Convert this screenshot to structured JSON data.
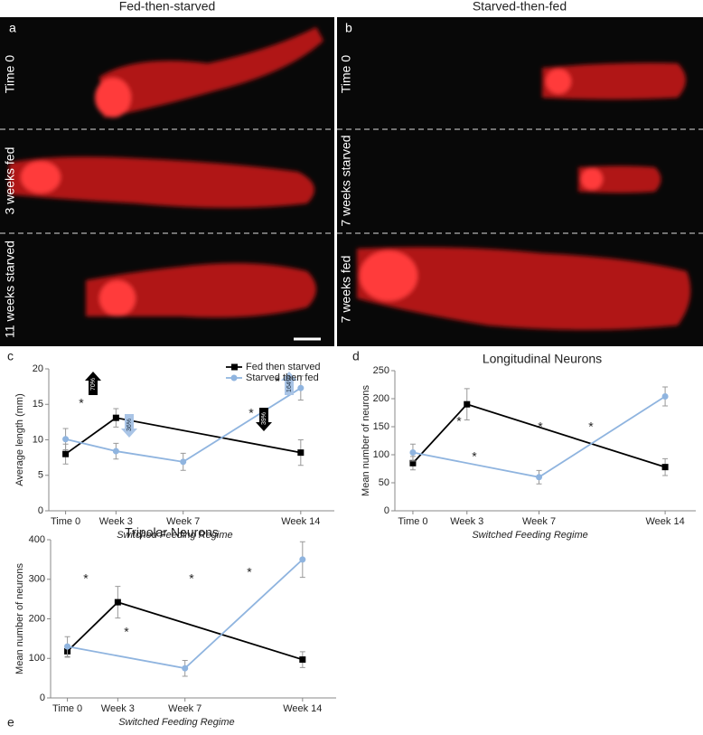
{
  "images": {
    "headers": [
      "Fed-then-starved",
      "Starved-then-fed"
    ],
    "panel_a": {
      "letter": "a",
      "rows": [
        "Time 0",
        "3 weeks fed",
        "11 weeks starved"
      ]
    },
    "panel_b": {
      "letter": "b",
      "rows": [
        "Time 0",
        "7 weeks starved",
        "7 weeks fed"
      ]
    }
  },
  "chart_data": [
    {
      "type": "line",
      "panel": "c",
      "ylabel": "Average length (mm)",
      "xlabel": "Switched Feeding Regime",
      "xlim": [
        -1,
        16
      ],
      "ylim": [
        0,
        20
      ],
      "yticks": [
        0,
        5,
        10,
        15,
        20
      ],
      "xticks": [
        {
          "value": 0,
          "label": "Time 0"
        },
        {
          "value": 3,
          "label": "Week 3"
        },
        {
          "value": 7,
          "label": "Week 7"
        },
        {
          "value": 14,
          "label": "Week 14"
        }
      ],
      "legend": "upper right",
      "series": [
        {
          "name": "Fed then starved",
          "color": "#000000",
          "marker": "square",
          "x": [
            0,
            3,
            14
          ],
          "values": [
            8,
            13.1,
            8.2
          ],
          "errors": [
            1.4,
            1.3,
            1.8
          ]
        },
        {
          "name": "Starved then fed",
          "color": "#8fb4df",
          "marker": "circle",
          "x": [
            0,
            3,
            7,
            14
          ],
          "values": [
            10.1,
            8.4,
            6.9,
            17.3
          ],
          "errors": [
            1.5,
            1.1,
            1.2,
            1.7
          ]
        }
      ],
      "annotations": [
        "*",
        "*",
        "*"
      ],
      "arrow_labels": [
        "70%",
        "36%",
        "39%",
        "164%"
      ]
    },
    {
      "type": "line",
      "panel": "d",
      "title": "Longitudinal Neurons",
      "ylabel": "Mean number of neurons",
      "xlabel": "Switched Feeding Regime",
      "xlim": [
        -1,
        15.7
      ],
      "ylim": [
        0,
        250
      ],
      "yticks": [
        0,
        50,
        100,
        150,
        200,
        250
      ],
      "xticks": [
        {
          "value": 0,
          "label": "Time 0"
        },
        {
          "value": 3,
          "label": "Week 3"
        },
        {
          "value": 7,
          "label": "Week 7"
        },
        {
          "value": 14,
          "label": "Week 14"
        }
      ],
      "series": [
        {
          "name": "Fed then starved",
          "color": "#000000",
          "marker": "square",
          "x": [
            0,
            3,
            14
          ],
          "values": [
            85,
            190,
            78
          ],
          "errors": [
            12,
            28,
            15
          ]
        },
        {
          "name": "Starved then fed",
          "color": "#8fb4df",
          "marker": "circle",
          "x": [
            0,
            7,
            14
          ],
          "values": [
            104,
            60,
            204
          ],
          "errors": [
            15,
            12,
            17
          ]
        }
      ],
      "annotations": [
        "*",
        "*",
        "*",
        "*"
      ]
    },
    {
      "type": "line",
      "panel": "e",
      "title": "Tripolar Neurons",
      "ylabel": "Mean number of neurons",
      "xlabel": "Switched Feeding Regime",
      "xlim": [
        -1,
        16
      ],
      "ylim": [
        0,
        400
      ],
      "yticks": [
        0,
        100,
        200,
        300,
        400
      ],
      "xticks": [
        {
          "value": 0,
          "label": "Time 0"
        },
        {
          "value": 3,
          "label": "Week 3"
        },
        {
          "value": 7,
          "label": "Week 7"
        },
        {
          "value": 14,
          "label": "Week 14"
        }
      ],
      "series": [
        {
          "name": "Fed then starved",
          "color": "#000000",
          "marker": "square",
          "x": [
            0,
            3,
            14
          ],
          "values": [
            118,
            242,
            97
          ],
          "errors": [
            15,
            40,
            20
          ]
        },
        {
          "name": "Starved then fed",
          "color": "#8fb4df",
          "marker": "circle",
          "x": [
            0,
            7,
            14
          ],
          "values": [
            130,
            75,
            350
          ],
          "errors": [
            25,
            20,
            45
          ]
        }
      ],
      "annotations": [
        "*",
        "*",
        "*",
        "*"
      ]
    }
  ]
}
